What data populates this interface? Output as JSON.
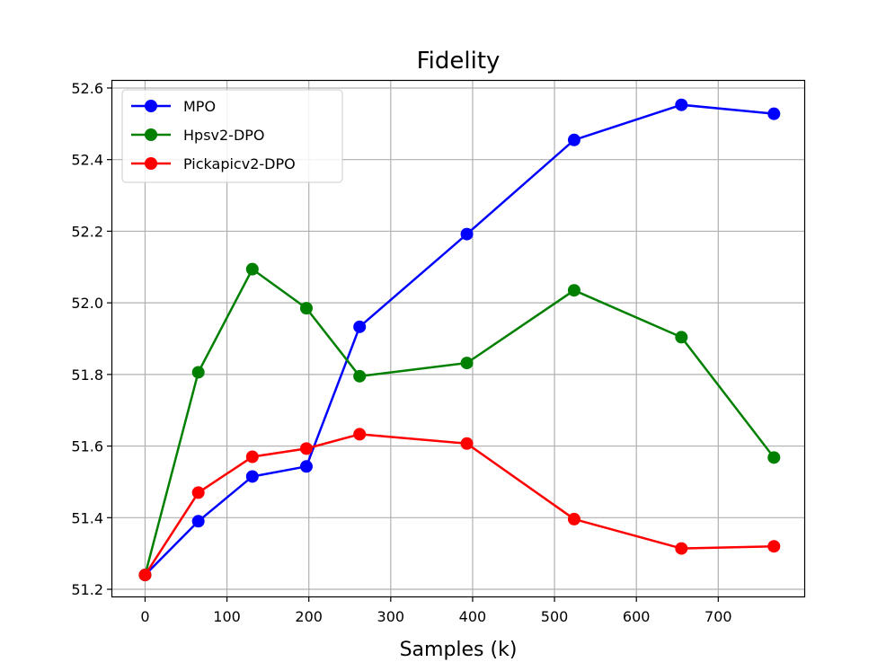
{
  "chart_data": {
    "type": "line",
    "title": "Fidelity",
    "xlabel": "Samples (k)",
    "ylabel": "",
    "xlim": [
      -40,
      805
    ],
    "ylim": [
      51.18,
      52.62
    ],
    "xticks": [
      0,
      100,
      200,
      300,
      400,
      500,
      600,
      700
    ],
    "yticks": [
      51.2,
      51.4,
      51.6,
      51.8,
      52.0,
      52.2,
      52.4,
      52.6
    ],
    "ytick_labels": [
      "51.2",
      "51.4",
      "51.6",
      "51.8",
      "52.0",
      "52.2",
      "52.4",
      "52.6"
    ],
    "grid": true,
    "legend_position": "top-left",
    "x": [
      0,
      65,
      131,
      197,
      262,
      393,
      524,
      655,
      768
    ],
    "series": [
      {
        "name": "MPO",
        "color": "#0000ff",
        "values": [
          51.24,
          51.39,
          51.515,
          51.543,
          51.933,
          52.192,
          52.455,
          52.553,
          52.528
        ]
      },
      {
        "name": "Hpsv2-DPO",
        "color": "#008000",
        "values": [
          51.24,
          51.806,
          52.094,
          51.985,
          51.795,
          51.832,
          52.035,
          51.904,
          51.568
        ]
      },
      {
        "name": "Pickapicv2-DPO",
        "color": "#ff0000",
        "values": [
          51.24,
          51.47,
          51.57,
          51.593,
          51.633,
          51.607,
          51.396,
          51.314,
          51.32
        ]
      }
    ]
  }
}
